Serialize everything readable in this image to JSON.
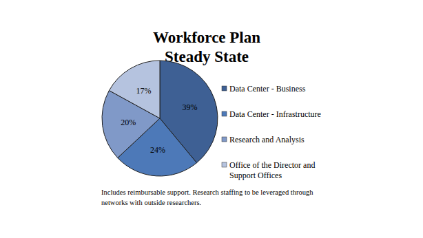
{
  "chart_data": {
    "type": "pie",
    "title": "Workforce Plan",
    "subtitle": "Steady State",
    "categories": [
      "Data Center - Business",
      "Data Center - Infrastructure",
      "Research and Analysis",
      "Office of the Director and Support Offices"
    ],
    "values": [
      39,
      24,
      20,
      17
    ],
    "value_labels": [
      "39%",
      "24%",
      "20%",
      "17%"
    ],
    "colors": [
      "#3e6094",
      "#4d79b8",
      "#8099c8",
      "#b5c3df"
    ],
    "data_labels": true,
    "legend": "right",
    "annotation": "Includes reimbursable support. Research staffing to be leveraged through networks with outside researchers."
  }
}
